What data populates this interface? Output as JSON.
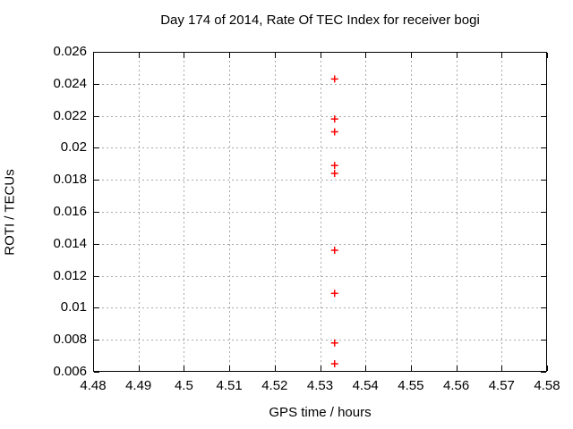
{
  "chart_data": {
    "type": "scatter",
    "title": "Day 174 of 2014, Rate Of TEC Index for receiver bogi",
    "xlabel": "GPS time / hours",
    "ylabel": "ROTI / TECUs",
    "xlim": [
      4.48,
      4.58
    ],
    "ylim": [
      0.006,
      0.026
    ],
    "x_ticks": [
      {
        "value": 4.48,
        "label": "4.48"
      },
      {
        "value": 4.49,
        "label": "4.49"
      },
      {
        "value": 4.5,
        "label": "4.5"
      },
      {
        "value": 4.51,
        "label": "4.51"
      },
      {
        "value": 4.52,
        "label": "4.52"
      },
      {
        "value": 4.53,
        "label": "4.53"
      },
      {
        "value": 4.54,
        "label": "4.54"
      },
      {
        "value": 4.55,
        "label": "4.55"
      },
      {
        "value": 4.56,
        "label": "4.56"
      },
      {
        "value": 4.57,
        "label": "4.57"
      },
      {
        "value": 4.58,
        "label": "4.58"
      }
    ],
    "y_ticks": [
      {
        "value": 0.006,
        "label": "0.006"
      },
      {
        "value": 0.008,
        "label": "0.008"
      },
      {
        "value": 0.01,
        "label": "0.01"
      },
      {
        "value": 0.012,
        "label": "0.012"
      },
      {
        "value": 0.014,
        "label": "0.014"
      },
      {
        "value": 0.016,
        "label": "0.016"
      },
      {
        "value": 0.018,
        "label": "0.018"
      },
      {
        "value": 0.02,
        "label": "0.02"
      },
      {
        "value": 0.022,
        "label": "0.022"
      },
      {
        "value": 0.024,
        "label": "0.024"
      },
      {
        "value": 0.026,
        "label": "0.026"
      }
    ],
    "grid": true,
    "legend": "none",
    "marker": {
      "shape": "plus",
      "size": 8,
      "color": "#ff0000"
    },
    "colors": {
      "marker": "#ff0000",
      "grid": "#a8a8a8",
      "axis": "#000000",
      "text": "#000000",
      "background": "#ffffff"
    },
    "series": [
      {
        "name": "ROTI",
        "points": [
          {
            "x": 4.5332,
            "y": 0.0243
          },
          {
            "x": 4.5332,
            "y": 0.0218
          },
          {
            "x": 4.5332,
            "y": 0.021
          },
          {
            "x": 4.5332,
            "y": 0.0189
          },
          {
            "x": 4.5332,
            "y": 0.0184
          },
          {
            "x": 4.5332,
            "y": 0.0136
          },
          {
            "x": 4.5332,
            "y": 0.0109
          },
          {
            "x": 4.5332,
            "y": 0.0078
          },
          {
            "x": 4.5332,
            "y": 0.0065
          }
        ]
      }
    ]
  }
}
